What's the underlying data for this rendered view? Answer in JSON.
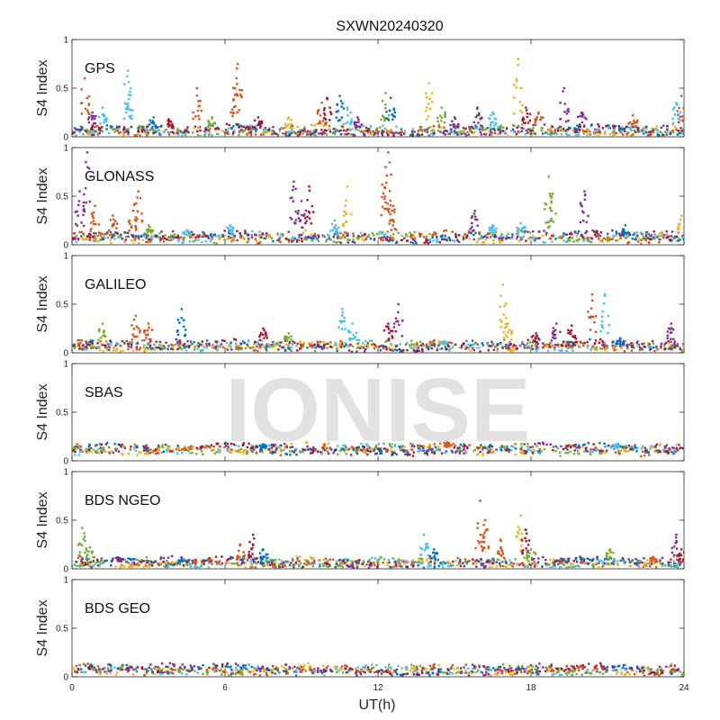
{
  "chart_data": {
    "type": "scatter",
    "title": "SXWN20240320",
    "xlabel": "UT(h)",
    "ylabel": "S4 Index",
    "xlim": [
      0,
      24
    ],
    "ylim": [
      0,
      1
    ],
    "x_ticks": [
      "0",
      "6",
      "12",
      "18",
      "24"
    ],
    "y_ticks": [
      "0",
      "0.5",
      "1"
    ],
    "grid": false,
    "watermark": "IONISE",
    "series_colors": [
      "#0072BD",
      "#D95319",
      "#EDB120",
      "#7E2F8E",
      "#77AC30",
      "#4DBEEE",
      "#A2142F"
    ],
    "panels": [
      {
        "label": "GPS",
        "baseline": 0.06,
        "spikes": [
          [
            0.5,
            0.6,
            1
          ],
          [
            0.8,
            0.25,
            3
          ],
          [
            1.2,
            0.3,
            5
          ],
          [
            2.2,
            0.68,
            5
          ],
          [
            2.3,
            0.5,
            5
          ],
          [
            3.2,
            0.2,
            0
          ],
          [
            3.8,
            0.18,
            6
          ],
          [
            4.9,
            0.5,
            1
          ],
          [
            5.5,
            0.2,
            4
          ],
          [
            6.5,
            0.75,
            1
          ],
          [
            6.4,
            0.5,
            1
          ],
          [
            7.3,
            0.2,
            6
          ],
          [
            8.5,
            0.2,
            2
          ],
          [
            9.8,
            0.35,
            1
          ],
          [
            10.0,
            0.4,
            6
          ],
          [
            10.5,
            0.42,
            0
          ],
          [
            10.8,
            0.3,
            5
          ],
          [
            11.2,
            0.2,
            3
          ],
          [
            12.3,
            0.45,
            4
          ],
          [
            12.5,
            0.4,
            0
          ],
          [
            14.0,
            0.55,
            2
          ],
          [
            14.5,
            0.3,
            4
          ],
          [
            15.0,
            0.2,
            3
          ],
          [
            15.9,
            0.3,
            3
          ],
          [
            16.5,
            0.25,
            5
          ],
          [
            17.5,
            0.8,
            2
          ],
          [
            17.8,
            0.3,
            6
          ],
          [
            18.3,
            0.25,
            1
          ],
          [
            19.3,
            0.5,
            3
          ],
          [
            20.0,
            0.25,
            3
          ],
          [
            22.0,
            0.22,
            1
          ],
          [
            23.9,
            0.42,
            1
          ],
          [
            23.7,
            0.35,
            5
          ]
        ]
      },
      {
        "label": "GLONASS",
        "baseline": 0.08,
        "spikes": [
          [
            0.3,
            0.55,
            3
          ],
          [
            0.6,
            0.95,
            3
          ],
          [
            0.9,
            0.4,
            1
          ],
          [
            1.6,
            0.3,
            1
          ],
          [
            2.6,
            0.55,
            1
          ],
          [
            2.4,
            0.35,
            1
          ],
          [
            3.0,
            0.2,
            4
          ],
          [
            4.5,
            0.15,
            5
          ],
          [
            6.2,
            0.2,
            5
          ],
          [
            8.7,
            0.65,
            3
          ],
          [
            9.0,
            0.45,
            3
          ],
          [
            9.3,
            0.6,
            6
          ],
          [
            10.3,
            0.25,
            5
          ],
          [
            10.8,
            0.6,
            2
          ],
          [
            12.3,
            0.8,
            1
          ],
          [
            12.4,
            0.95,
            1
          ],
          [
            12.6,
            0.4,
            1
          ],
          [
            15.8,
            0.35,
            3
          ],
          [
            16.5,
            0.2,
            5
          ],
          [
            17.6,
            0.22,
            5
          ],
          [
            18.7,
            0.7,
            4
          ],
          [
            18.8,
            0.5,
            4
          ],
          [
            20.1,
            0.55,
            3
          ],
          [
            21.7,
            0.2,
            0
          ],
          [
            23.9,
            0.3,
            2
          ]
        ]
      },
      {
        "label": "GALILEO",
        "baseline": 0.07,
        "spikes": [
          [
            1.2,
            0.3,
            4
          ],
          [
            2.5,
            0.38,
            1
          ],
          [
            3.0,
            0.3,
            1
          ],
          [
            4.3,
            0.45,
            0
          ],
          [
            7.5,
            0.25,
            6
          ],
          [
            8.5,
            0.2,
            4
          ],
          [
            10.6,
            0.45,
            5
          ],
          [
            11.0,
            0.3,
            5
          ],
          [
            12.4,
            0.3,
            6
          ],
          [
            12.8,
            0.5,
            3
          ],
          [
            14.6,
            0.12,
            5
          ],
          [
            16.9,
            0.7,
            2
          ],
          [
            17.1,
            0.3,
            2
          ],
          [
            18.2,
            0.2,
            6
          ],
          [
            19.0,
            0.3,
            3
          ],
          [
            19.6,
            0.28,
            6
          ],
          [
            20.4,
            0.6,
            1
          ],
          [
            20.9,
            0.6,
            5
          ],
          [
            21.5,
            0.15,
            0
          ],
          [
            23.5,
            0.3,
            3
          ]
        ]
      },
      {
        "label": "SBAS",
        "baseline": 0.12,
        "spikes": [
          [
            7.5,
            0.17,
            0
          ],
          [
            14.7,
            0.2,
            1
          ],
          [
            21.3,
            0.17,
            5
          ]
        ]
      },
      {
        "label": "BDS NGEO",
        "baseline": 0.06,
        "spikes": [
          [
            0.4,
            0.42,
            4
          ],
          [
            0.7,
            0.22,
            4
          ],
          [
            1.8,
            0.12,
            3
          ],
          [
            4.3,
            0.1,
            0
          ],
          [
            6.6,
            0.25,
            1
          ],
          [
            7.1,
            0.35,
            6
          ],
          [
            7.5,
            0.2,
            0
          ],
          [
            13.8,
            0.35,
            5
          ],
          [
            14.2,
            0.2,
            0
          ],
          [
            16.0,
            0.7,
            1
          ],
          [
            16.2,
            0.5,
            1
          ],
          [
            16.8,
            0.3,
            1
          ],
          [
            17.6,
            0.55,
            2
          ],
          [
            17.8,
            0.4,
            6
          ],
          [
            18.0,
            0.2,
            4
          ],
          [
            21.1,
            0.2,
            4
          ],
          [
            22.8,
            0.12,
            1
          ],
          [
            23.7,
            0.35,
            3
          ],
          [
            23.9,
            0.2,
            6
          ]
        ]
      },
      {
        "label": "BDS GEO",
        "baseline": 0.07,
        "spikes": []
      }
    ]
  }
}
